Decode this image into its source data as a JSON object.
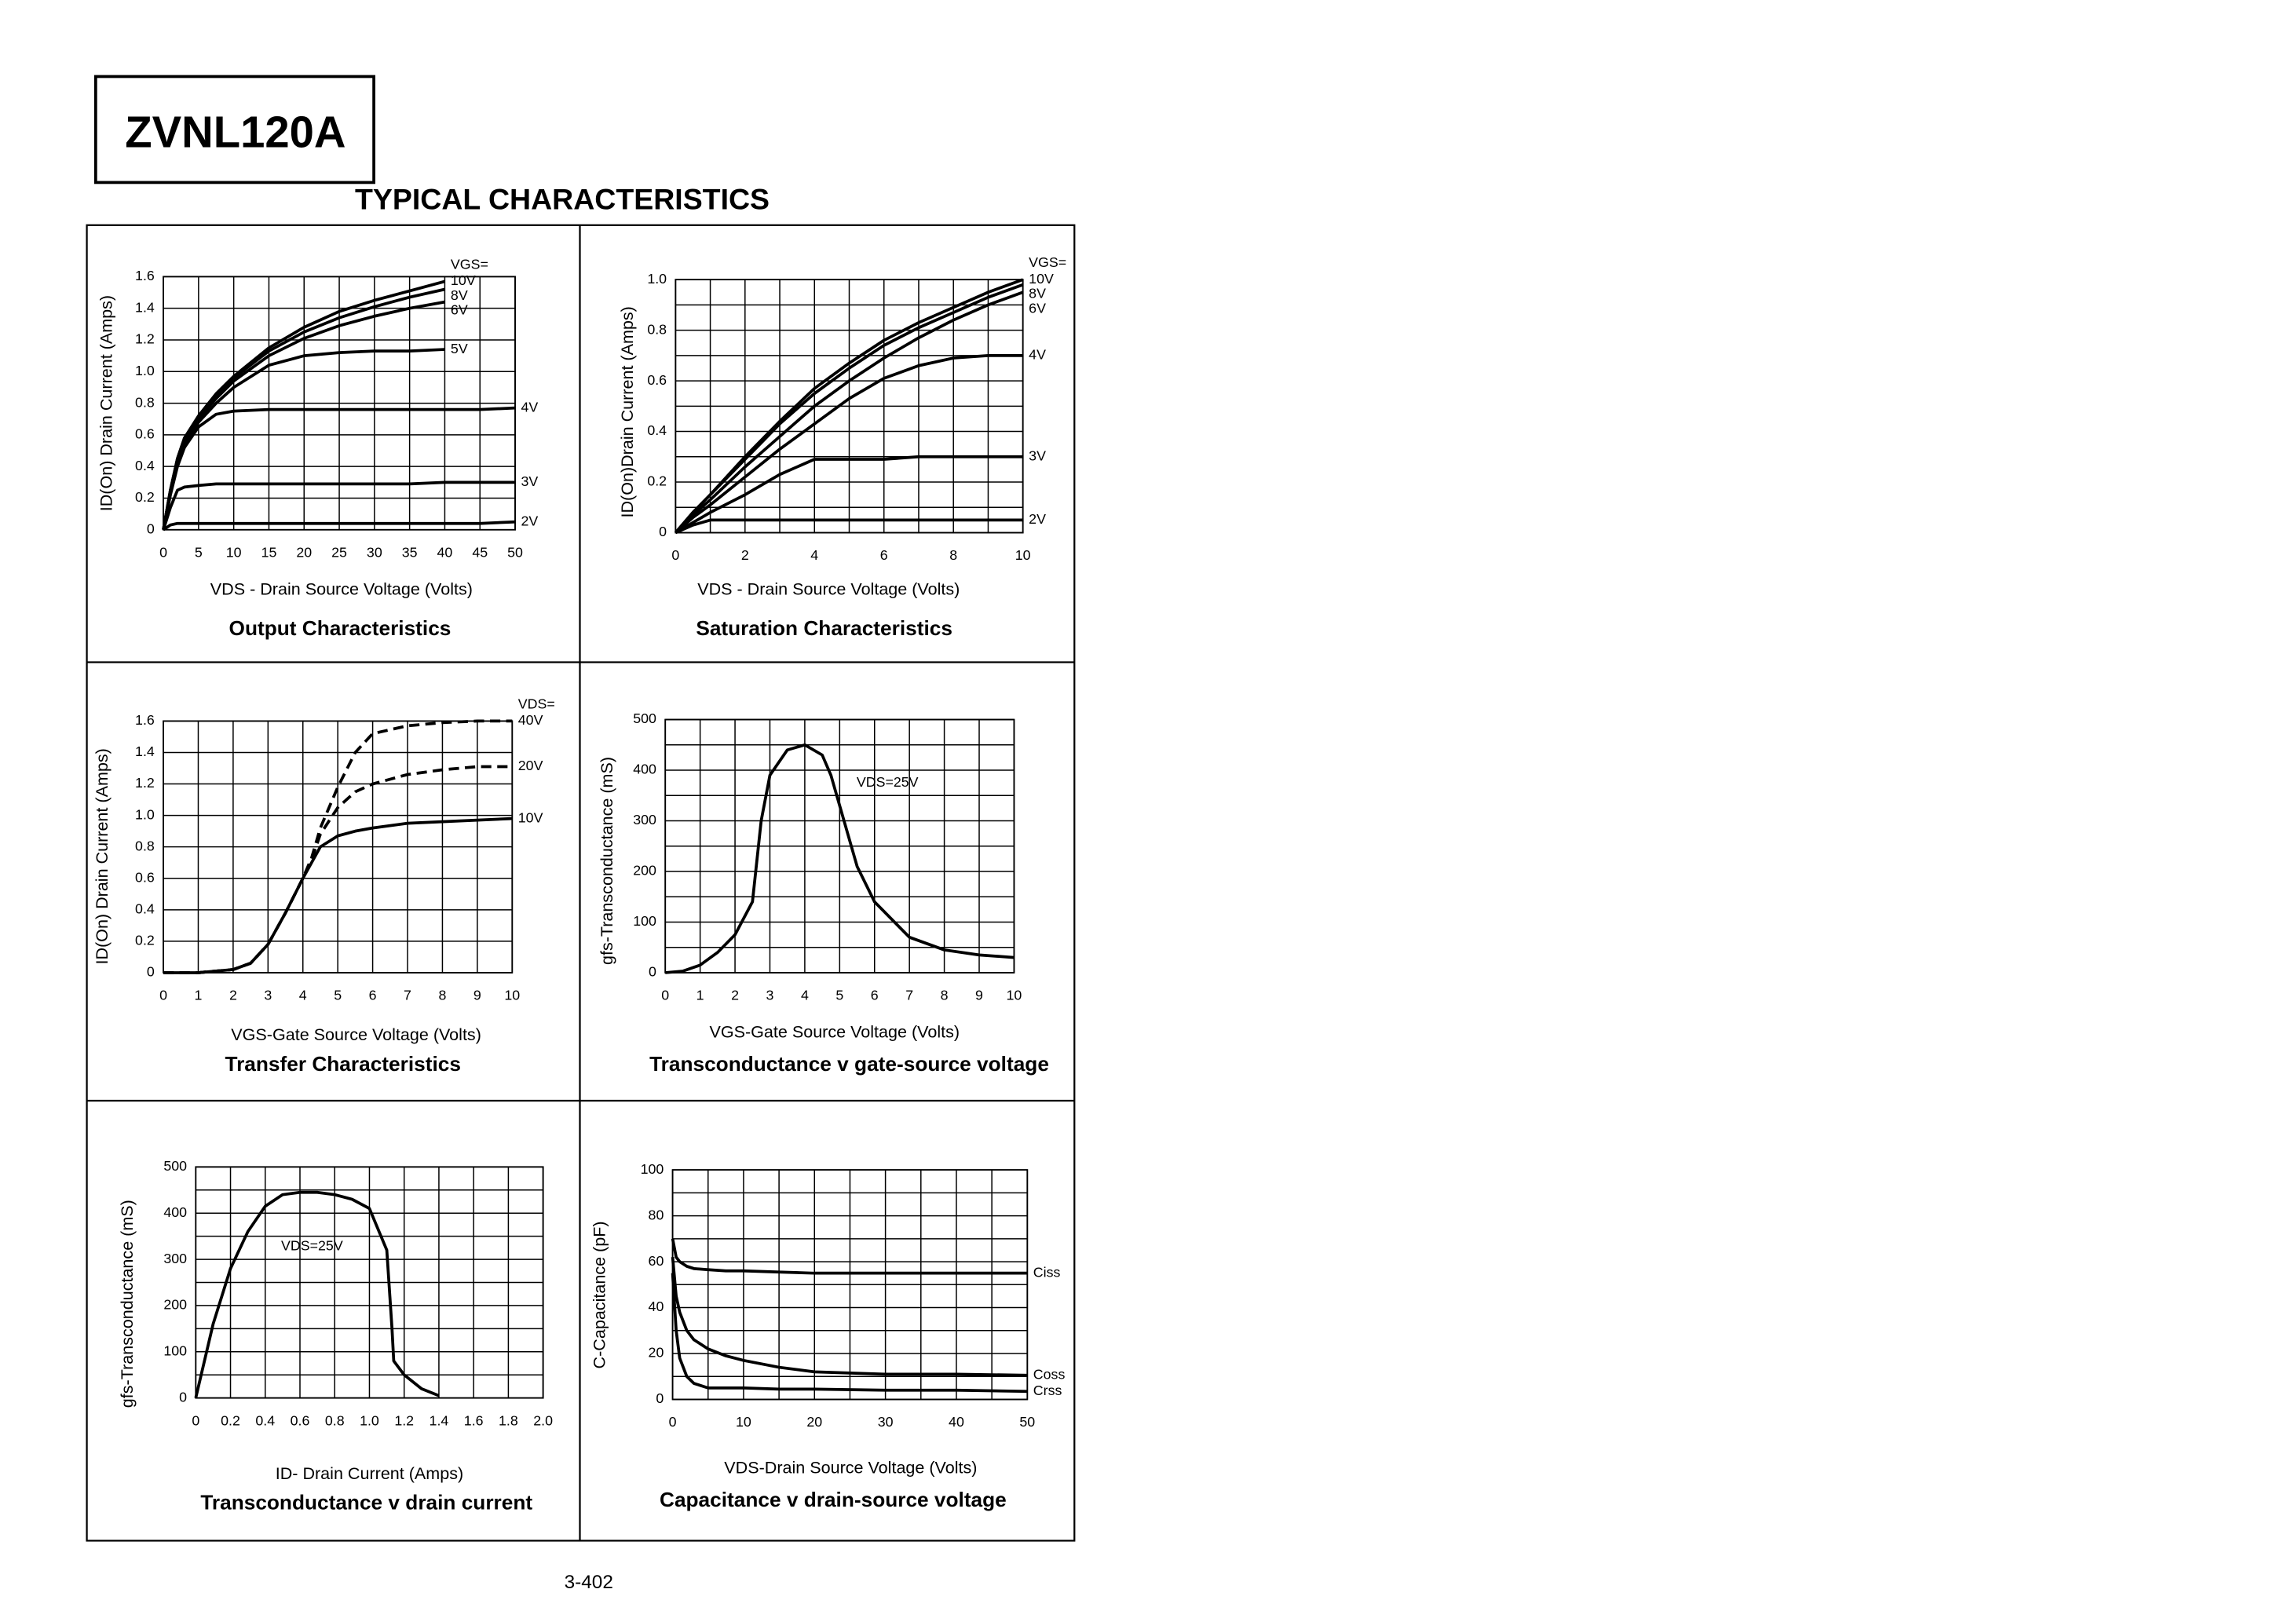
{
  "part": "ZVNL120A",
  "heading": "TYPICAL CHARACTERISTICS",
  "page_number": "3-402",
  "chart_data": [
    {
      "type": "line",
      "title": "Output Characteristics",
      "x_label": "VDS - Drain Source Voltage (Volts)",
      "y_label": "ID(On) Drain Current (Amps)",
      "legend_title": "VGS=",
      "xlim": [
        0,
        50
      ],
      "ylim": [
        0,
        1.6
      ],
      "xticks": [
        0,
        5,
        10,
        15,
        20,
        25,
        30,
        35,
        40,
        45,
        50
      ],
      "yticks": [
        0,
        0.2,
        0.4,
        0.6,
        0.8,
        {
          "value": 1,
          "label": "1.0"
        },
        1.2,
        1.4,
        1.6
      ],
      "grid": true,
      "x": [
        0,
        1,
        2,
        3,
        5,
        7.5,
        10,
        15,
        20,
        25,
        30,
        35,
        40,
        45,
        50
      ],
      "series": [
        {
          "name": "10V",
          "color": "#000000",
          "values": [
            0,
            0.25,
            0.45,
            0.58,
            0.72,
            0.86,
            0.97,
            1.15,
            1.28,
            1.38,
            1.45,
            1.51,
            1.57,
            null,
            null
          ]
        },
        {
          "name": "8V",
          "color": "#000000",
          "values": [
            0,
            0.25,
            0.45,
            0.58,
            0.71,
            0.85,
            0.96,
            1.13,
            1.25,
            1.34,
            1.41,
            1.47,
            1.52,
            null,
            null
          ]
        },
        {
          "name": "6V",
          "color": "#000000",
          "values": [
            0,
            0.25,
            0.44,
            0.57,
            0.7,
            0.83,
            0.94,
            1.1,
            1.21,
            1.29,
            1.35,
            1.4,
            1.44,
            null,
            null
          ]
        },
        {
          "name": "5V",
          "color": "#000000",
          "values": [
            0,
            0.24,
            0.43,
            0.55,
            0.68,
            0.8,
            0.9,
            1.04,
            1.1,
            1.12,
            1.13,
            1.13,
            1.14,
            null,
            null
          ]
        },
        {
          "name": "4V",
          "color": "#000000",
          "values": [
            0,
            0.22,
            0.4,
            0.52,
            0.65,
            0.73,
            0.75,
            0.76,
            0.76,
            0.76,
            0.76,
            0.76,
            0.76,
            0.76,
            0.77
          ]
        },
        {
          "name": "3V",
          "color": "#000000",
          "values": [
            0,
            0.14,
            0.25,
            0.27,
            0.28,
            0.29,
            0.29,
            0.29,
            0.29,
            0.29,
            0.29,
            0.29,
            0.3,
            0.3,
            0.3
          ]
        },
        {
          "name": "2V",
          "color": "#000000",
          "values": [
            0,
            0.03,
            0.04,
            0.04,
            0.04,
            0.04,
            0.04,
            0.04,
            0.04,
            0.04,
            0.04,
            0.04,
            0.04,
            0.04,
            0.05
          ]
        }
      ]
    },
    {
      "type": "line",
      "title": "Saturation Characteristics",
      "x_label": "VDS - Drain Source Voltage (Volts)",
      "y_label": "ID(On)Drain Current (Amps)",
      "legend_title": "VGS=",
      "xlim": [
        0,
        10
      ],
      "ylim": [
        0,
        1
      ],
      "xticks": [
        0,
        2,
        4,
        6,
        8,
        10
      ],
      "yticks": [
        0,
        0.2,
        0.4,
        0.6,
        0.8,
        {
          "value": 1,
          "label": "1.0"
        }
      ],
      "grid": true,
      "xgrid": [
        0,
        1,
        2,
        3,
        4,
        5,
        6,
        7,
        8,
        9,
        10
      ],
      "ygrid": [
        0,
        0.1,
        0.2,
        0.3,
        0.4,
        0.5,
        0.6,
        0.7,
        0.8,
        0.9,
        1
      ],
      "x": [
        0,
        0.5,
        1,
        2,
        3,
        4,
        5,
        6,
        7,
        8,
        9,
        10
      ],
      "series": [
        {
          "name": "10V",
          "color": "#000000",
          "values": [
            0,
            0.08,
            0.15,
            0.3,
            0.44,
            0.57,
            0.67,
            0.76,
            0.83,
            0.89,
            0.95,
            1
          ]
        },
        {
          "name": "8V",
          "color": "#000000",
          "values": [
            0,
            0.08,
            0.15,
            0.29,
            0.43,
            0.55,
            0.65,
            0.74,
            0.81,
            0.87,
            0.93,
            0.98
          ]
        },
        {
          "name": "6V",
          "color": "#000000",
          "values": [
            0,
            0.07,
            0.13,
            0.26,
            0.38,
            0.5,
            0.6,
            0.69,
            0.77,
            0.84,
            0.9,
            0.95
          ]
        },
        {
          "name": "4V",
          "color": "#000000",
          "values": [
            0,
            0.06,
            0.11,
            0.22,
            0.33,
            0.43,
            0.53,
            0.61,
            0.66,
            0.69,
            0.7,
            0.7
          ]
        },
        {
          "name": "3V",
          "color": "#000000",
          "values": [
            0,
            0.04,
            0.08,
            0.15,
            0.23,
            0.29,
            0.29,
            0.29,
            0.3,
            0.3,
            0.3,
            0.3
          ]
        },
        {
          "name": "2V",
          "color": "#000000",
          "values": [
            0,
            0.03,
            0.05,
            0.05,
            0.05,
            0.05,
            0.05,
            0.05,
            0.05,
            0.05,
            0.05,
            0.05
          ]
        }
      ]
    },
    {
      "type": "line",
      "title": "Transfer Characteristics",
      "x_label": "VGS-Gate Source Voltage (Volts)",
      "y_label": "ID(On) Drain Current  (Amps)",
      "legend_title": "VDS=",
      "xlim": [
        0,
        10
      ],
      "ylim": [
        0,
        1.6
      ],
      "xticks": [
        0,
        1,
        2,
        3,
        4,
        5,
        6,
        7,
        8,
        9,
        10
      ],
      "yticks": [
        0,
        0.2,
        0.4,
        0.6,
        0.8,
        {
          "value": 1,
          "label": "1.0"
        },
        1.2,
        1.4,
        1.6
      ],
      "grid": true,
      "x": [
        0,
        1,
        2,
        2.5,
        3,
        3.5,
        4,
        4.25,
        4.5,
        5,
        5.5,
        6,
        7,
        8,
        9,
        10
      ],
      "series": [
        {
          "name": "40V",
          "color": "#000000",
          "dash": true,
          "values": [
            0,
            0,
            0.02,
            0.06,
            0.18,
            0.38,
            0.6,
            0.73,
            0.92,
            1.18,
            1.4,
            1.52,
            1.57,
            1.59,
            1.6,
            1.6
          ]
        },
        {
          "name": "20V",
          "color": "#000000",
          "dash": true,
          "values": [
            0,
            0,
            0.02,
            0.06,
            0.18,
            0.38,
            0.6,
            0.72,
            0.88,
            1.05,
            1.15,
            1.2,
            1.26,
            1.29,
            1.31,
            1.31
          ]
        },
        {
          "name": "10V",
          "color": "#000000",
          "values": [
            0,
            0,
            0.02,
            0.06,
            0.18,
            0.38,
            0.6,
            0.7,
            0.8,
            0.87,
            0.9,
            0.92,
            0.95,
            0.96,
            0.97,
            0.98
          ]
        }
      ]
    },
    {
      "type": "line",
      "title": "Transconductance v gate-source voltage",
      "x_label": "VGS-Gate Source Voltage  (Volts)",
      "y_label": "gfs-Transconductance (mS)",
      "annotation": "VDS=25V",
      "xlim": [
        0,
        10
      ],
      "ylim": [
        0,
        500
      ],
      "xticks": [
        0,
        1,
        2,
        3,
        4,
        5,
        6,
        7,
        8,
        9,
        10
      ],
      "yticks": [
        0,
        100,
        200,
        300,
        400,
        500
      ],
      "grid": true,
      "ygrid": [
        0,
        50,
        100,
        150,
        200,
        250,
        300,
        350,
        400,
        450,
        500
      ],
      "x": [
        0,
        0.5,
        1,
        1.5,
        2,
        2.5,
        2.75,
        3,
        3.5,
        4,
        4.5,
        4.75,
        5,
        5.5,
        6,
        7,
        8,
        9,
        10
      ],
      "series": [
        {
          "color": "#000000",
          "values": [
            0,
            3,
            15,
            40,
            75,
            140,
            300,
            390,
            440,
            450,
            430,
            390,
            330,
            210,
            140,
            70,
            45,
            35,
            30
          ]
        }
      ]
    },
    {
      "type": "line",
      "title": "Transconductance v drain current",
      "x_label": "ID- Drain Current (Amps)",
      "y_label": "gfs-Transconductance (mS)",
      "annotation": "VDS=25V",
      "xlim": [
        0,
        2
      ],
      "ylim": [
        0,
        500
      ],
      "xticks": [
        0,
        0.2,
        0.4,
        0.6,
        0.8,
        {
          "value": 1,
          "label": "1.0"
        },
        1.2,
        1.4,
        1.6,
        1.8,
        {
          "value": 2,
          "label": "2.0"
        }
      ],
      "yticks": [
        0,
        100,
        200,
        300,
        400,
        500
      ],
      "grid": true,
      "ygrid": [
        0,
        50,
        100,
        150,
        200,
        250,
        300,
        350,
        400,
        450,
        500
      ],
      "x": [
        0,
        0.05,
        0.1,
        0.2,
        0.3,
        0.4,
        0.5,
        0.6,
        0.7,
        0.8,
        0.9,
        1,
        1.1,
        1.13,
        1.14,
        1.2,
        1.3,
        1.4
      ],
      "series": [
        {
          "color": "#000000",
          "values": [
            0,
            80,
            160,
            280,
            360,
            415,
            440,
            445,
            445,
            440,
            430,
            410,
            320,
            150,
            80,
            50,
            20,
            5
          ]
        }
      ]
    },
    {
      "type": "line",
      "title": "Capacitance v drain-source voltage",
      "x_label": "VDS-Drain Source Voltage (Volts)",
      "y_label": "C-Capacitance (pF)",
      "xlim": [
        0,
        50
      ],
      "ylim": [
        0,
        100
      ],
      "xticks": [
        0,
        10,
        20,
        30,
        40,
        50
      ],
      "yticks": [
        0,
        20,
        40,
        60,
        80,
        100
      ],
      "grid": true,
      "xgrid": [
        0,
        5,
        10,
        15,
        20,
        25,
        30,
        35,
        40,
        45,
        50
      ],
      "ygrid": [
        0,
        10,
        20,
        30,
        40,
        50,
        60,
        70,
        80,
        90,
        100
      ],
      "x": [
        0,
        0.5,
        1,
        2,
        3,
        5,
        7.5,
        10,
        15,
        20,
        30,
        40,
        50
      ],
      "series": [
        {
          "name": "Ciss",
          "color": "#000000",
          "values": [
            70,
            62,
            60,
            58,
            57,
            56.5,
            56,
            56,
            55.5,
            55,
            55,
            55,
            55
          ]
        },
        {
          "name": "Coss",
          "color": "#000000",
          "values": [
            62,
            45,
            38,
            30,
            26,
            22,
            19,
            17,
            14,
            12,
            11,
            11,
            10.5
          ]
        },
        {
          "name": "Crss",
          "color": "#000000",
          "values": [
            55,
            30,
            18,
            10,
            7,
            5,
            5,
            5,
            4.5,
            4.5,
            4,
            4,
            3.5
          ]
        }
      ]
    }
  ]
}
